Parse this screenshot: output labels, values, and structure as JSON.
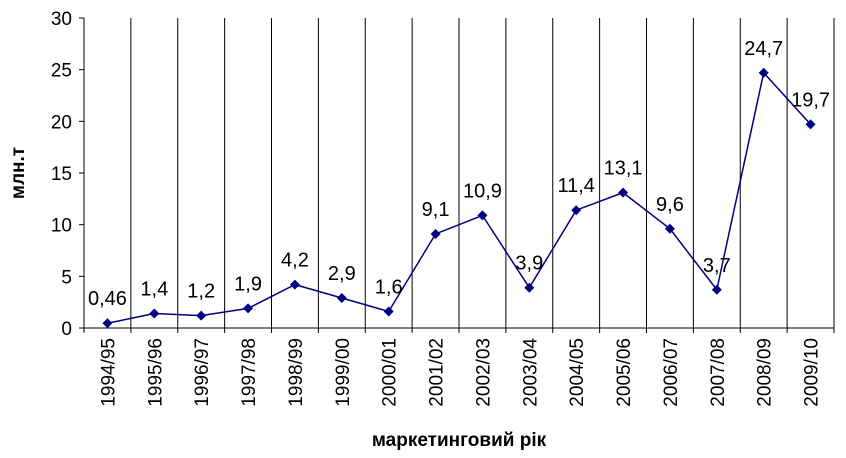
{
  "chart_data": {
    "type": "line",
    "title": "",
    "xlabel": "маркетинговий рік",
    "ylabel": "млн.т",
    "ylim": [
      0,
      30
    ],
    "yticks": [
      "0",
      "5",
      "10",
      "15",
      "20",
      "25",
      "30"
    ],
    "grid": "vertical lines between categories",
    "legend": "none",
    "line_color": "#000080",
    "categories": [
      "1994/95",
      "1995/96",
      "1996/97",
      "1997/98",
      "1998/99",
      "1999/00",
      "2000/01",
      "2001/02",
      "2002/03",
      "2003/04",
      "2004/05",
      "2005/06",
      "2006/07",
      "2007/08",
      "2008/09",
      "2009/10"
    ],
    "series": [
      {
        "values": [
          0.46,
          1.4,
          1.2,
          1.9,
          4.2,
          2.9,
          1.6,
          9.1,
          10.9,
          3.9,
          11.4,
          13.1,
          9.6,
          3.7,
          24.7,
          19.7
        ],
        "labels": [
          "0,46",
          "1,4",
          "1,2",
          "1,9",
          "4,2",
          "2,9",
          "1,6",
          "9,1",
          "10,9",
          "3,9",
          "11,4",
          "13,1",
          "9,6",
          "3,7",
          "24,7",
          "19,7"
        ]
      }
    ]
  }
}
